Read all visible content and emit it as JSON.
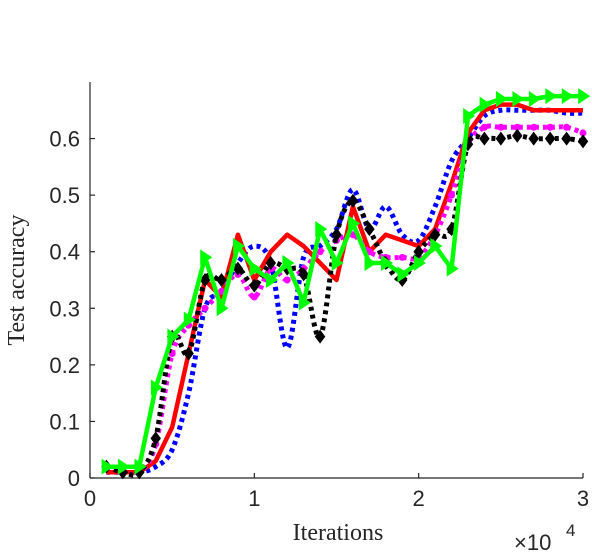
{
  "chart_data": {
    "type": "line",
    "title": "",
    "xlabel": "Iterations",
    "ylabel": "Test accuracy",
    "x_exponent_label": "×10",
    "x_exponent_power": "4",
    "xlim": [
      0,
      30000
    ],
    "ylim": [
      0,
      0.7
    ],
    "xticks": [
      0,
      10000,
      20000,
      30000
    ],
    "xtick_labels": [
      "0",
      "1",
      "2",
      "3"
    ],
    "yticks": [
      0,
      0.1,
      0.2,
      0.3,
      0.4,
      0.5,
      0.6
    ],
    "ytick_labels": [
      "0",
      "0.1",
      "0.2",
      "0.3",
      "0.4",
      "0.5",
      "0.6"
    ],
    "grid": false,
    "legend": "none",
    "series": [
      {
        "color": "#0000ff",
        "style": "dotted",
        "marker": "none",
        "x": [
          1000,
          2000,
          3000,
          4000,
          5000,
          6000,
          7000,
          8000,
          9000,
          10000,
          11000,
          12000,
          13000,
          14000,
          15000,
          16000,
          17000,
          18000,
          19000,
          20000,
          21000,
          22000,
          23000,
          24000,
          25000,
          26000,
          27000,
          28000,
          29000,
          30000
        ],
        "y": [
          0.01,
          0.01,
          0.01,
          0.02,
          0.05,
          0.15,
          0.3,
          0.33,
          0.38,
          0.41,
          0.38,
          0.23,
          0.39,
          0.41,
          0.44,
          0.51,
          0.44,
          0.48,
          0.43,
          0.42,
          0.48,
          0.56,
          0.6,
          0.64,
          0.65,
          0.65,
          0.65,
          0.65,
          0.645,
          0.645
        ]
      },
      {
        "color": "#ff0000",
        "style": "solid",
        "marker": "none",
        "x": [
          1000,
          2000,
          3000,
          4000,
          5000,
          6000,
          7000,
          8000,
          9000,
          10000,
          11000,
          12000,
          13000,
          14000,
          15000,
          16000,
          17000,
          18000,
          19000,
          20000,
          21000,
          22000,
          23000,
          24000,
          25000,
          26000,
          27000,
          28000,
          29000,
          30000
        ],
        "y": [
          0.01,
          0.01,
          0.01,
          0.03,
          0.09,
          0.22,
          0.35,
          0.32,
          0.43,
          0.35,
          0.4,
          0.43,
          0.41,
          0.38,
          0.35,
          0.48,
          0.4,
          0.43,
          0.42,
          0.41,
          0.44,
          0.52,
          0.61,
          0.65,
          0.66,
          0.66,
          0.65,
          0.65,
          0.65,
          0.65
        ]
      },
      {
        "color": "#ff00ff",
        "style": "dotted",
        "marker": "circle",
        "x": [
          1000,
          2000,
          3000,
          4000,
          5000,
          6000,
          7000,
          8000,
          9000,
          10000,
          11000,
          12000,
          13000,
          14000,
          15000,
          16000,
          17000,
          18000,
          19000,
          20000,
          21000,
          22000,
          23000,
          24000,
          25000,
          26000,
          27000,
          28000,
          29000,
          30000
        ],
        "y": [
          0.02,
          0.01,
          0.01,
          0.06,
          0.22,
          0.27,
          0.3,
          0.33,
          0.36,
          0.32,
          0.37,
          0.35,
          0.37,
          0.4,
          0.42,
          0.43,
          0.4,
          0.39,
          0.39,
          0.39,
          0.43,
          0.5,
          0.59,
          0.62,
          0.62,
          0.62,
          0.62,
          0.62,
          0.62,
          0.61
        ]
      },
      {
        "color": "#000000",
        "style": "dotted",
        "marker": "diamond",
        "x": [
          1000,
          2000,
          3000,
          4000,
          5000,
          6000,
          7000,
          8000,
          9000,
          10000,
          11000,
          12000,
          13000,
          14000,
          15000,
          16000,
          17000,
          18000,
          19000,
          20000,
          21000,
          22000,
          23000,
          24000,
          25000,
          26000,
          27000,
          28000,
          29000,
          30000
        ],
        "y": [
          0.02,
          0.01,
          0.01,
          0.07,
          0.25,
          0.22,
          0.35,
          0.35,
          0.37,
          0.34,
          0.38,
          0.37,
          0.36,
          0.25,
          0.43,
          0.49,
          0.44,
          0.38,
          0.35,
          0.4,
          0.43,
          0.44,
          0.59,
          0.6,
          0.6,
          0.605,
          0.6,
          0.6,
          0.6,
          0.595
        ]
      },
      {
        "color": "#00ff00",
        "style": "solid",
        "marker": "triangle-right",
        "x": [
          1000,
          2000,
          3000,
          4000,
          5000,
          6000,
          7000,
          8000,
          9000,
          10000,
          11000,
          12000,
          13000,
          14000,
          15000,
          16000,
          17000,
          18000,
          19000,
          20000,
          21000,
          22000,
          23000,
          24000,
          25000,
          26000,
          27000,
          28000,
          29000,
          30000
        ],
        "y": [
          0.02,
          0.02,
          0.02,
          0.16,
          0.25,
          0.28,
          0.39,
          0.3,
          0.41,
          0.37,
          0.35,
          0.38,
          0.31,
          0.44,
          0.38,
          0.45,
          0.38,
          0.38,
          0.36,
          0.38,
          0.41,
          0.37,
          0.64,
          0.66,
          0.67,
          0.67,
          0.67,
          0.675,
          0.675,
          0.675
        ]
      }
    ]
  }
}
